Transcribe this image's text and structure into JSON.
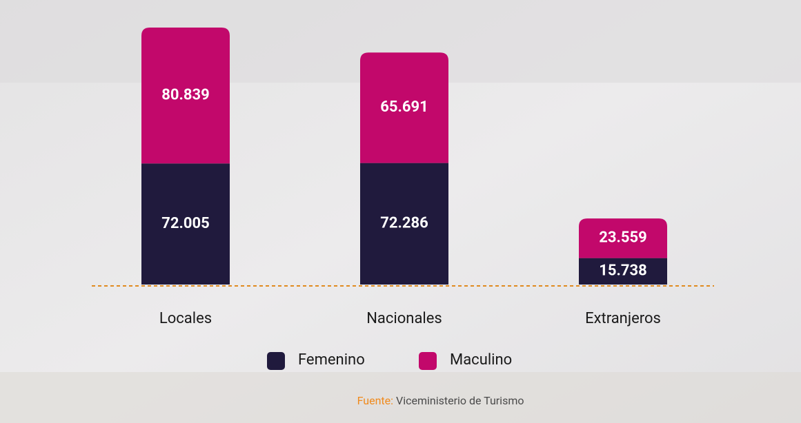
{
  "chart_data": {
    "type": "stacked-bar",
    "categories": [
      "Locales",
      "Nacionales",
      "Extranjeros"
    ],
    "series": [
      {
        "name": "Femenino",
        "color": "#201a3d",
        "values": [
          72005,
          72286,
          15738
        ],
        "value_labels": [
          "72.005",
          "72.286",
          "15.738"
        ]
      },
      {
        "name": "Maculino",
        "color": "#c2086b",
        "values": [
          80839,
          65691,
          23559
        ],
        "value_labels": [
          "80.839",
          "65.691",
          "23.559"
        ]
      }
    ],
    "source_label": "Fuente:",
    "source": "Viceministerio de Turismo"
  }
}
